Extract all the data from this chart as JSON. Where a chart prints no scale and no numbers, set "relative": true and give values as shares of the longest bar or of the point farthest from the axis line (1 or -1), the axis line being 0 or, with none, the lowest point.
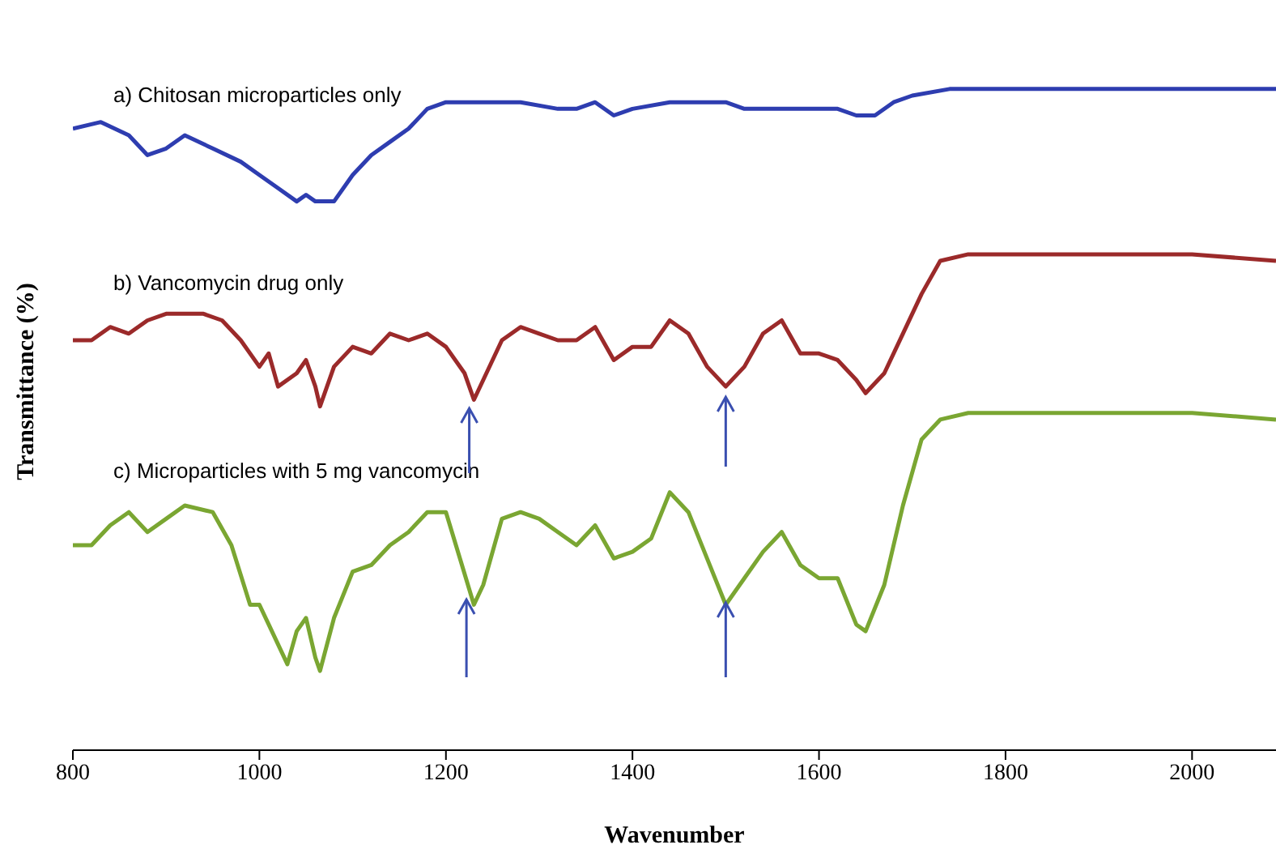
{
  "chart_data": {
    "type": "line",
    "relative": true,
    "xlabel": "Wavenumber",
    "ylabel": "Transmittance (%)",
    "xlim": [
      800,
      2090
    ],
    "xticks": [
      800,
      1000,
      1200,
      1400,
      1600,
      1800,
      2000
    ],
    "grid": false,
    "legend": false,
    "marker": "none",
    "line_style": "solid",
    "series": [
      {
        "name": "a) Chitosan microparticles only",
        "color": "#2e3db0",
        "x": [
          800,
          830,
          860,
          880,
          900,
          920,
          950,
          980,
          1000,
          1020,
          1040,
          1050,
          1060,
          1080,
          1100,
          1120,
          1140,
          1160,
          1180,
          1200,
          1240,
          1280,
          1320,
          1340,
          1360,
          1380,
          1400,
          1440,
          1480,
          1500,
          1520,
          1540,
          1560,
          1580,
          1600,
          1620,
          1640,
          1660,
          1680,
          1700,
          1740,
          2000,
          2090
        ],
        "values": [
          0.94,
          0.95,
          0.93,
          0.9,
          0.91,
          0.93,
          0.91,
          0.89,
          0.87,
          0.85,
          0.83,
          0.84,
          0.83,
          0.83,
          0.87,
          0.9,
          0.92,
          0.94,
          0.97,
          0.98,
          0.98,
          0.98,
          0.97,
          0.97,
          0.98,
          0.96,
          0.97,
          0.98,
          0.98,
          0.98,
          0.97,
          0.97,
          0.97,
          0.97,
          0.97,
          0.97,
          0.96,
          0.96,
          0.98,
          0.99,
          1,
          1,
          1
        ]
      },
      {
        "name": "b) Vancomycin drug only",
        "color": "#9b2a2a",
        "x": [
          800,
          820,
          840,
          860,
          880,
          900,
          940,
          960,
          980,
          1000,
          1010,
          1020,
          1040,
          1050,
          1060,
          1065,
          1080,
          1100,
          1120,
          1140,
          1160,
          1180,
          1200,
          1220,
          1230,
          1240,
          1260,
          1280,
          1300,
          1320,
          1340,
          1360,
          1380,
          1400,
          1420,
          1440,
          1460,
          1480,
          1500,
          1520,
          1540,
          1560,
          1580,
          1600,
          1620,
          1640,
          1650,
          1670,
          1690,
          1710,
          1730,
          1760,
          2000,
          2090
        ],
        "values": [
          0.62,
          0.62,
          0.64,
          0.63,
          0.65,
          0.66,
          0.66,
          0.65,
          0.62,
          0.58,
          0.6,
          0.55,
          0.57,
          0.59,
          0.55,
          0.52,
          0.58,
          0.61,
          0.6,
          0.63,
          0.62,
          0.63,
          0.61,
          0.57,
          0.53,
          0.56,
          0.62,
          0.64,
          0.63,
          0.62,
          0.62,
          0.64,
          0.59,
          0.61,
          0.61,
          0.65,
          0.63,
          0.58,
          0.55,
          0.58,
          0.63,
          0.65,
          0.6,
          0.6,
          0.59,
          0.56,
          0.54,
          0.57,
          0.63,
          0.69,
          0.74,
          0.75,
          0.75,
          0.74
        ]
      },
      {
        "name": "c) Microparticles with 5 mg vancomycin",
        "color": "#7aa632",
        "x": [
          800,
          820,
          840,
          860,
          880,
          900,
          920,
          950,
          970,
          990,
          1000,
          1010,
          1030,
          1040,
          1050,
          1060,
          1065,
          1080,
          1100,
          1120,
          1140,
          1160,
          1180,
          1200,
          1215,
          1230,
          1240,
          1260,
          1280,
          1300,
          1320,
          1340,
          1360,
          1380,
          1400,
          1420,
          1440,
          1460,
          1480,
          1500,
          1520,
          1540,
          1560,
          1580,
          1600,
          1620,
          1640,
          1650,
          1670,
          1690,
          1710,
          1730,
          1760,
          2000,
          2090
        ],
        "values": [
          0.31,
          0.31,
          0.34,
          0.36,
          0.33,
          0.35,
          0.37,
          0.36,
          0.31,
          0.22,
          0.22,
          0.19,
          0.13,
          0.18,
          0.2,
          0.14,
          0.12,
          0.2,
          0.27,
          0.28,
          0.31,
          0.33,
          0.36,
          0.36,
          0.29,
          0.22,
          0.25,
          0.35,
          0.36,
          0.35,
          0.33,
          0.31,
          0.34,
          0.29,
          0.3,
          0.32,
          0.39,
          0.36,
          0.29,
          0.22,
          0.26,
          0.3,
          0.33,
          0.28,
          0.26,
          0.26,
          0.19,
          0.18,
          0.25,
          0.37,
          0.47,
          0.5,
          0.51,
          0.51,
          0.5
        ]
      }
    ]
  }
}
